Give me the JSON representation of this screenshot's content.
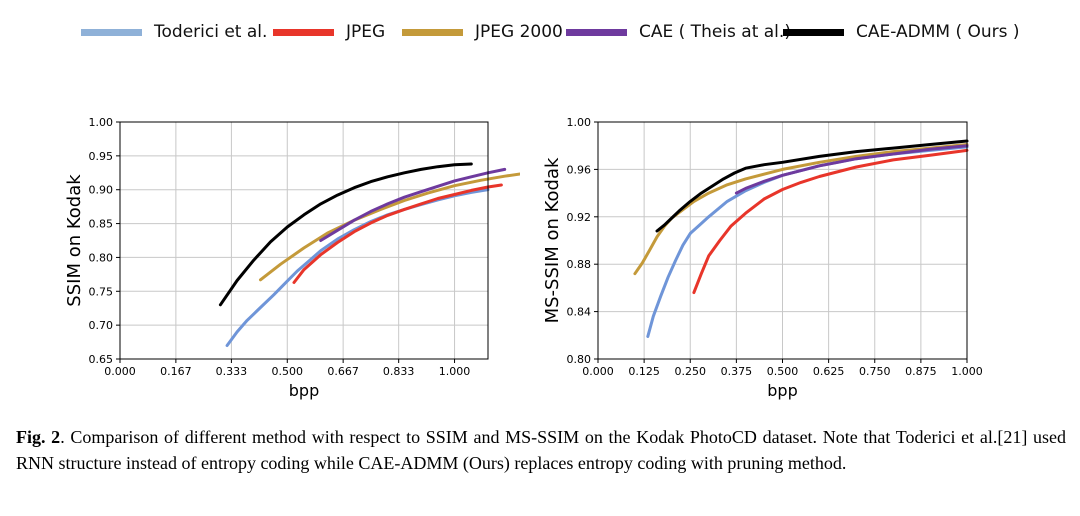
{
  "legend": [
    {
      "label": "Toderici et al.",
      "color": "#8fb1d8"
    },
    {
      "label": "JPEG",
      "color": "#e8352a"
    },
    {
      "label": "JPEG 2000",
      "color": "#c49a3a"
    },
    {
      "label": "CAE ( Theis at al.)",
      "color": "#6e3a9e"
    },
    {
      "label": "CAE-ADMM ( Ours )",
      "color": "#000000"
    }
  ],
  "caption": {
    "figure_label": "Fig. 2",
    "text": ". Comparison of different method with respect to SSIM and MS-SSIM on the Kodak PhotoCD dataset. Note that Toderici et al.[21] used RNN structure instead of entropy coding while CAE-ADMM (Ours) replaces entropy coding with pruning method."
  },
  "chart_data": [
    {
      "type": "line",
      "title": "",
      "xlabel": "bpp",
      "ylabel": "SSIM on Kodak",
      "xlim": [
        0.0,
        1.1
      ],
      "ylim": [
        0.65,
        1.0
      ],
      "xticks": [
        0.0,
        0.167,
        0.333,
        0.5,
        0.667,
        0.833,
        1.0
      ],
      "xtick_labels": [
        "0.000",
        "0.167",
        "0.333",
        "0.500",
        "0.667",
        "0.833",
        "1.000"
      ],
      "yticks": [
        0.65,
        0.7,
        0.75,
        0.8,
        0.85,
        0.9,
        0.95,
        1.0
      ],
      "ytick_labels": [
        "0.65",
        "0.70",
        "0.75",
        "0.80",
        "0.85",
        "0.90",
        "0.95",
        "1.00"
      ],
      "grid": true,
      "series": [
        {
          "name": "Toderici et al.",
          "color": "#6f95d8",
          "x": [
            0.32,
            0.35,
            0.38,
            0.42,
            0.46,
            0.5,
            0.53,
            0.57,
            0.6,
            0.65,
            0.7,
            0.75,
            0.8,
            0.85,
            0.9,
            0.95,
            1.0,
            1.05,
            1.1
          ],
          "y": [
            0.67,
            0.69,
            0.707,
            0.726,
            0.745,
            0.765,
            0.78,
            0.797,
            0.81,
            0.827,
            0.841,
            0.853,
            0.863,
            0.871,
            0.878,
            0.885,
            0.891,
            0.896,
            0.9
          ]
        },
        {
          "name": "JPEG",
          "color": "#e8352a",
          "x": [
            0.52,
            0.55,
            0.6,
            0.65,
            0.7,
            0.75,
            0.8,
            0.85,
            0.9,
            0.95,
            1.0,
            1.05,
            1.1,
            1.14
          ],
          "y": [
            0.763,
            0.782,
            0.804,
            0.822,
            0.838,
            0.851,
            0.862,
            0.871,
            0.879,
            0.887,
            0.893,
            0.899,
            0.904,
            0.907
          ]
        },
        {
          "name": "JPEG 2000",
          "color": "#c49a3a",
          "x": [
            0.42,
            0.48,
            0.55,
            0.62,
            0.7,
            0.78,
            0.85,
            0.92,
            1.0,
            1.08,
            1.15,
            1.22
          ],
          "y": [
            0.767,
            0.79,
            0.814,
            0.836,
            0.855,
            0.871,
            0.884,
            0.895,
            0.906,
            0.914,
            0.92,
            0.925
          ]
        },
        {
          "name": "CAE ( Theis at al.)",
          "color": "#6e3a9e",
          "x": [
            0.6,
            0.65,
            0.7,
            0.75,
            0.8,
            0.85,
            0.9,
            0.95,
            1.0,
            1.05,
            1.1,
            1.15
          ],
          "y": [
            0.825,
            0.84,
            0.855,
            0.868,
            0.879,
            0.889,
            0.897,
            0.905,
            0.913,
            0.919,
            0.925,
            0.93
          ]
        },
        {
          "name": "CAE-ADMM ( Ours )",
          "color": "#000000",
          "x": [
            0.3,
            0.35,
            0.4,
            0.45,
            0.5,
            0.55,
            0.6,
            0.65,
            0.7,
            0.75,
            0.8,
            0.85,
            0.9,
            0.95,
            1.0,
            1.05
          ],
          "y": [
            0.73,
            0.766,
            0.796,
            0.823,
            0.845,
            0.863,
            0.879,
            0.892,
            0.903,
            0.912,
            0.919,
            0.925,
            0.93,
            0.934,
            0.937,
            0.938
          ]
        }
      ]
    },
    {
      "type": "line",
      "title": "",
      "xlabel": "bpp",
      "ylabel": "MS-SSIM on Kodak",
      "xlim": [
        0.0,
        1.0
      ],
      "ylim": [
        0.8,
        1.0
      ],
      "xticks": [
        0.0,
        0.125,
        0.25,
        0.375,
        0.5,
        0.625,
        0.75,
        0.875,
        1.0
      ],
      "xtick_labels": [
        "0.000",
        "0.125",
        "0.250",
        "0.375",
        "0.500",
        "0.625",
        "0.750",
        "0.875",
        "1.000"
      ],
      "yticks": [
        0.8,
        0.84,
        0.88,
        0.92,
        0.96,
        1.0
      ],
      "ytick_labels": [
        "0.80",
        "0.84",
        "0.88",
        "0.92",
        "0.96",
        "1.00"
      ],
      "grid": true,
      "series": [
        {
          "name": "Toderici et al.",
          "color": "#6f95d8",
          "x": [
            0.135,
            0.15,
            0.17,
            0.19,
            0.21,
            0.23,
            0.25,
            0.275,
            0.3,
            0.35,
            0.4,
            0.45,
            0.5,
            0.6,
            0.7,
            0.8,
            0.9,
            1.0
          ],
          "y": [
            0.819,
            0.836,
            0.853,
            0.869,
            0.883,
            0.896,
            0.906,
            0.913,
            0.92,
            0.933,
            0.942,
            0.949,
            0.955,
            0.963,
            0.969,
            0.973,
            0.976,
            0.979
          ]
        },
        {
          "name": "JPEG",
          "color": "#e8352a",
          "x": [
            0.26,
            0.28,
            0.3,
            0.33,
            0.36,
            0.4,
            0.45,
            0.5,
            0.55,
            0.6,
            0.7,
            0.8,
            0.9,
            1.0
          ],
          "y": [
            0.856,
            0.872,
            0.887,
            0.9,
            0.912,
            0.923,
            0.935,
            0.943,
            0.949,
            0.954,
            0.962,
            0.968,
            0.972,
            0.976
          ]
        },
        {
          "name": "JPEG 2000",
          "color": "#c49a3a",
          "x": [
            0.1,
            0.12,
            0.14,
            0.16,
            0.18,
            0.2,
            0.23,
            0.26,
            0.3,
            0.35,
            0.4,
            0.5,
            0.6,
            0.7,
            0.8,
            0.9,
            1.0
          ],
          "y": [
            0.872,
            0.881,
            0.892,
            0.903,
            0.912,
            0.919,
            0.926,
            0.933,
            0.94,
            0.947,
            0.952,
            0.96,
            0.966,
            0.971,
            0.975,
            0.978,
            0.981
          ]
        },
        {
          "name": "CAE ( Theis at al.)",
          "color": "#6e3a9e",
          "x": [
            0.375,
            0.4,
            0.45,
            0.5,
            0.55,
            0.6,
            0.65,
            0.7,
            0.8,
            0.9,
            1.0
          ],
          "y": [
            0.94,
            0.944,
            0.95,
            0.955,
            0.959,
            0.963,
            0.966,
            0.969,
            0.973,
            0.977,
            0.98
          ]
        },
        {
          "name": "CAE-ADMM ( Ours )",
          "color": "#000000",
          "x": [
            0.16,
            0.18,
            0.2,
            0.22,
            0.25,
            0.28,
            0.31,
            0.34,
            0.37,
            0.4,
            0.45,
            0.5,
            0.6,
            0.7,
            0.8,
            0.9,
            1.0
          ],
          "y": [
            0.908,
            0.913,
            0.919,
            0.925,
            0.933,
            0.94,
            0.946,
            0.952,
            0.957,
            0.961,
            0.964,
            0.966,
            0.971,
            0.975,
            0.978,
            0.981,
            0.984
          ]
        }
      ]
    }
  ]
}
